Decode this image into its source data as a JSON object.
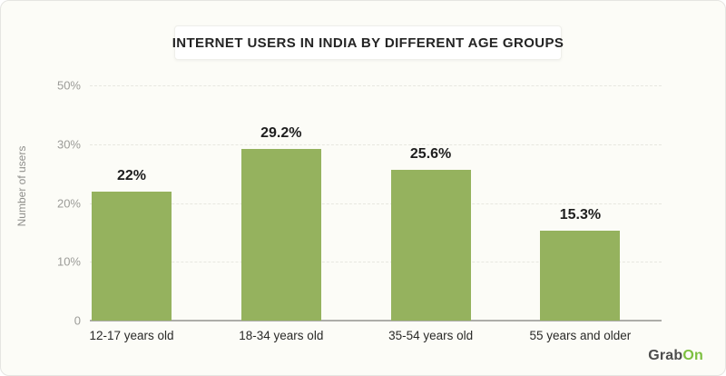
{
  "chart_data": {
    "type": "bar",
    "title": "INTERNET USERS IN INDIA BY DIFFERENT AGE GROUPS",
    "xlabel": "",
    "ylabel": "Number of users",
    "categories": [
      "12-17 years old",
      "18-34 years old",
      "35-54 years old",
      "55 years and older"
    ],
    "values": [
      22,
      29.2,
      25.6,
      15.3
    ],
    "value_labels": [
      "22%",
      "29.2%",
      "25.6%",
      "15.3%"
    ],
    "ytick_labels": [
      "50%",
      "30%",
      "20%",
      "10%",
      "0"
    ],
    "bar_color": "#95B25E",
    "grid": true,
    "legend": false,
    "axis_note": "y ticks evenly spaced as rendered in source graphic"
  },
  "brand": {
    "grab": "Grab",
    "on": "On",
    "grab_color": "#4D4D4D",
    "on_color": "#7CBF3F"
  }
}
